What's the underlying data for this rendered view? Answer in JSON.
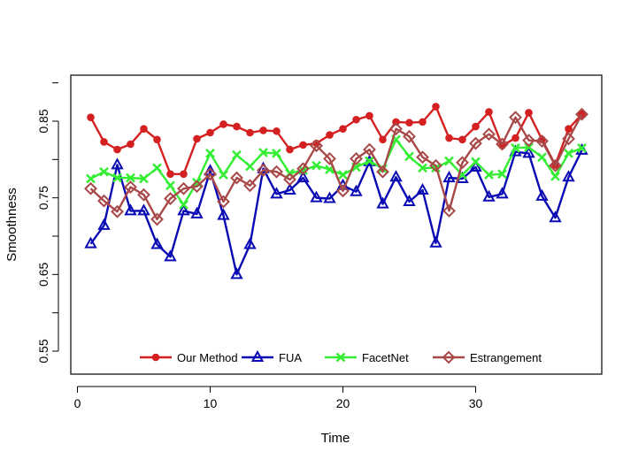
{
  "chart_data": {
    "type": "line",
    "title": "",
    "xlabel": "Time",
    "ylabel": "Smoothness",
    "xlim": [
      -0.5,
      39.5
    ],
    "ylim": [
      0.52,
      0.91
    ],
    "x_ticks": [
      0,
      10,
      20,
      30
    ],
    "x_tick_labels": [
      "0",
      "10",
      "20",
      "30"
    ],
    "y_ticks": [
      0.55,
      0.65,
      0.75,
      0.85
    ],
    "y_tick_labels": [
      "0.55",
      "0.65",
      "0.75",
      "0.85"
    ],
    "grid": false,
    "legend_position": "bottom",
    "x": [
      1,
      2,
      3,
      4,
      5,
      6,
      7,
      8,
      9,
      10,
      11,
      12,
      13,
      14,
      15,
      16,
      17,
      18,
      19,
      20,
      21,
      22,
      23,
      24,
      25,
      26,
      27,
      28,
      29,
      30,
      31,
      32,
      33,
      34,
      35,
      36,
      37,
      38
    ],
    "series": [
      {
        "name": "Our Method",
        "color": "#d42020",
        "marker": "circle",
        "values": [
          0.855,
          0.823,
          0.813,
          0.82,
          0.84,
          0.826,
          0.781,
          0.781,
          0.827,
          0.835,
          0.846,
          0.843,
          0.835,
          0.838,
          0.837,
          0.813,
          0.819,
          0.821,
          0.832,
          0.84,
          0.852,
          0.857,
          0.826,
          0.849,
          0.848,
          0.849,
          0.869,
          0.828,
          0.826,
          0.843,
          0.862,
          0.818,
          0.828,
          0.861,
          0.826,
          0.793,
          0.84,
          0.859
        ]
      },
      {
        "name": "FUA",
        "color": "#0a0ab4",
        "marker": "triangle",
        "values": [
          0.69,
          0.714,
          0.793,
          0.733,
          0.733,
          0.689,
          0.673,
          0.733,
          0.729,
          0.785,
          0.727,
          0.65,
          0.689,
          0.788,
          0.755,
          0.76,
          0.776,
          0.75,
          0.749,
          0.766,
          0.758,
          0.797,
          0.742,
          0.777,
          0.745,
          0.76,
          0.691,
          0.776,
          0.775,
          0.79,
          0.751,
          0.755,
          0.81,
          0.808,
          0.752,
          0.724,
          0.777,
          0.812
        ]
      },
      {
        "name": "FacetNet",
        "color": "#33ee33",
        "marker": "x",
        "values": [
          0.775,
          0.784,
          0.776,
          0.776,
          0.775,
          0.789,
          0.766,
          0.741,
          0.77,
          0.808,
          0.78,
          0.806,
          0.791,
          0.809,
          0.808,
          0.782,
          0.786,
          0.792,
          0.787,
          0.78,
          0.79,
          0.798,
          0.788,
          0.826,
          0.804,
          0.789,
          0.789,
          0.798,
          0.78,
          0.797,
          0.78,
          0.781,
          0.815,
          0.816,
          0.803,
          0.778,
          0.808,
          0.815
        ]
      },
      {
        "name": "Estrangement",
        "color": "#a84848",
        "marker": "diamond",
        "values": [
          0.762,
          0.746,
          0.732,
          0.764,
          0.754,
          0.722,
          0.749,
          0.762,
          0.765,
          0.781,
          0.745,
          0.776,
          0.766,
          0.786,
          0.784,
          0.774,
          0.788,
          0.818,
          0.801,
          0.759,
          0.801,
          0.813,
          0.784,
          0.84,
          0.83,
          0.803,
          0.792,
          0.733,
          0.796,
          0.821,
          0.833,
          0.82,
          0.855,
          0.825,
          0.824,
          0.792,
          0.827,
          0.859
        ]
      }
    ]
  }
}
